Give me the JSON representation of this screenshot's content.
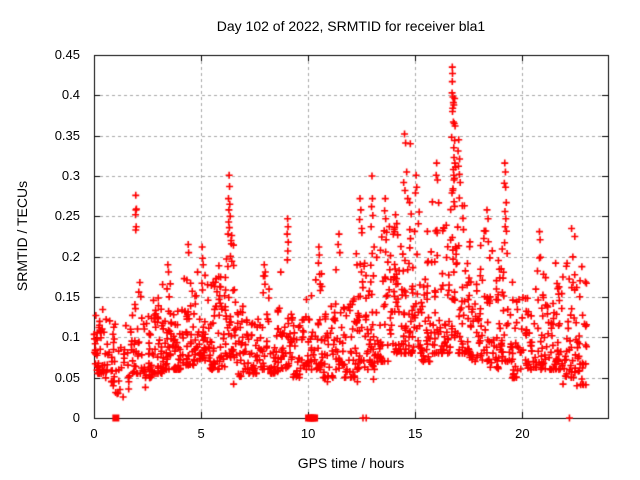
{
  "chart_data": {
    "type": "scatter",
    "title": "Day 102 of 2022, SRMTID for receiver bla1",
    "xlabel": "GPS time / hours",
    "ylabel": "SRMTID / TECUs",
    "xlim": [
      0,
      24
    ],
    "ylim": [
      0,
      0.45
    ],
    "x_ticks": [
      0,
      5,
      10,
      15,
      20
    ],
    "x_tick_labels": [
      "0",
      "5",
      "10",
      "15",
      "20"
    ],
    "y_ticks": [
      0,
      0.05,
      0.1,
      0.15,
      0.2,
      0.25,
      0.3,
      0.35,
      0.4,
      0.45
    ],
    "y_tick_labels": [
      "0",
      "0.05",
      "0.1",
      "0.15",
      "0.2",
      "0.25",
      "0.3",
      "0.35",
      "0.4",
      "0.45"
    ],
    "grid": true,
    "legend": "none",
    "marker": "plus",
    "marker_color": "#ff0000",
    "grid_color": "#a8a8a8",
    "axis_color": "#000000",
    "background_color": "#ffffff",
    "max_point": [
      16.73,
      0.435
    ],
    "peak_points": [
      [
        1.95,
        0.276
      ],
      [
        1.96,
        0.258
      ],
      [
        1.98,
        0.259
      ],
      [
        1.94,
        0.252
      ],
      [
        1.95,
        0.233
      ],
      [
        1.97,
        0.237
      ],
      [
        3.45,
        0.19
      ],
      [
        3.48,
        0.181
      ],
      [
        4.4,
        0.215
      ],
      [
        4.42,
        0.205
      ],
      [
        5.05,
        0.212
      ],
      [
        5.07,
        0.198
      ],
      [
        5.1,
        0.19
      ],
      [
        6.31,
        0.301
      ],
      [
        6.33,
        0.287
      ],
      [
        6.28,
        0.272
      ],
      [
        6.34,
        0.265
      ],
      [
        6.3,
        0.258
      ],
      [
        6.36,
        0.25
      ],
      [
        6.29,
        0.243
      ],
      [
        6.32,
        0.236
      ],
      [
        6.26,
        0.228
      ],
      [
        6.4,
        0.22
      ],
      [
        7.95,
        0.19
      ],
      [
        8.0,
        0.181
      ],
      [
        9.04,
        0.247
      ],
      [
        9.06,
        0.237
      ],
      [
        9.02,
        0.228
      ],
      [
        9.07,
        0.218
      ],
      [
        9.05,
        0.207
      ],
      [
        9.03,
        0.196
      ],
      [
        10.5,
        0.212
      ],
      [
        10.52,
        0.202
      ],
      [
        10.48,
        0.192
      ],
      [
        11.44,
        0.228
      ],
      [
        11.4,
        0.215
      ],
      [
        11.48,
        0.205
      ],
      [
        12.42,
        0.272
      ],
      [
        12.46,
        0.258
      ],
      [
        12.4,
        0.246
      ],
      [
        12.5,
        0.235
      ],
      [
        12.98,
        0.3
      ],
      [
        13.0,
        0.272
      ],
      [
        12.96,
        0.262
      ],
      [
        13.02,
        0.251
      ],
      [
        12.94,
        0.237
      ],
      [
        13.08,
        0.212
      ],
      [
        13.6,
        0.272
      ],
      [
        13.57,
        0.257
      ],
      [
        13.62,
        0.247
      ],
      [
        13.55,
        0.232
      ],
      [
        13.64,
        0.221
      ],
      [
        14.08,
        0.252
      ],
      [
        14.14,
        0.241
      ],
      [
        14.04,
        0.236
      ],
      [
        14.18,
        0.227
      ],
      [
        14.5,
        0.352
      ],
      [
        14.55,
        0.341
      ],
      [
        14.77,
        0.34
      ],
      [
        14.6,
        0.305
      ],
      [
        14.46,
        0.292
      ],
      [
        14.52,
        0.282
      ],
      [
        14.65,
        0.272
      ],
      [
        15.04,
        0.301
      ],
      [
        15.07,
        0.286
      ],
      [
        15.01,
        0.279
      ],
      [
        16.0,
        0.316
      ],
      [
        15.98,
        0.301
      ],
      [
        16.04,
        0.295
      ],
      [
        16.73,
        0.435
      ],
      [
        16.74,
        0.427
      ],
      [
        16.73,
        0.417
      ],
      [
        16.72,
        0.403
      ],
      [
        16.76,
        0.398
      ],
      [
        16.84,
        0.396
      ],
      [
        16.78,
        0.391
      ],
      [
        16.8,
        0.388
      ],
      [
        16.75,
        0.384
      ],
      [
        16.74,
        0.38
      ],
      [
        16.78,
        0.367
      ],
      [
        16.82,
        0.365
      ],
      [
        16.86,
        0.362
      ],
      [
        16.7,
        0.348
      ],
      [
        16.84,
        0.344
      ],
      [
        16.8,
        0.335
      ],
      [
        16.81,
        0.323
      ],
      [
        16.85,
        0.316
      ],
      [
        16.88,
        0.311
      ],
      [
        16.78,
        0.308
      ],
      [
        16.8,
        0.301
      ],
      [
        16.83,
        0.297
      ],
      [
        17.03,
        0.345
      ],
      [
        17.0,
        0.331
      ],
      [
        17.07,
        0.321
      ],
      [
        17.02,
        0.312
      ],
      [
        17.06,
        0.302
      ],
      [
        17.1,
        0.292
      ],
      [
        18.35,
        0.258
      ],
      [
        18.4,
        0.247
      ],
      [
        19.18,
        0.316
      ],
      [
        19.21,
        0.305
      ],
      [
        19.16,
        0.291
      ],
      [
        19.22,
        0.286
      ],
      [
        19.25,
        0.267
      ],
      [
        19.19,
        0.256
      ],
      [
        19.23,
        0.247
      ],
      [
        19.2,
        0.237
      ],
      [
        20.8,
        0.231
      ],
      [
        20.83,
        0.221
      ],
      [
        22.3,
        0.235
      ],
      [
        22.45,
        0.225
      ],
      [
        0.9,
        0.04
      ],
      [
        1.36,
        0.026
      ],
      [
        1.62,
        0.036
      ],
      [
        2.4,
        0.038
      ],
      [
        6.52,
        0.042
      ],
      [
        10.9,
        0.045
      ],
      [
        12.3,
        0.045
      ],
      [
        13.05,
        0.048
      ],
      [
        19.62,
        0.05
      ],
      [
        21.9,
        0.042
      ],
      [
        22.55,
        0.04
      ]
    ],
    "density_bands_format": "[t_start_hours, t_end_hours, point_count, value_min_TECUs, value_max_TECUs]",
    "density_bands": [
      [
        0.0,
        0.5,
        42,
        0.055,
        0.135
      ],
      [
        0.5,
        1.0,
        26,
        0.045,
        0.125
      ],
      [
        1.0,
        1.35,
        10,
        0.03,
        0.095
      ],
      [
        1.35,
        1.75,
        13,
        0.045,
        0.12
      ],
      [
        1.75,
        2.2,
        26,
        0.055,
        0.175
      ],
      [
        2.2,
        2.7,
        32,
        0.05,
        0.14
      ],
      [
        2.7,
        3.2,
        36,
        0.055,
        0.15
      ],
      [
        3.2,
        3.7,
        36,
        0.06,
        0.17
      ],
      [
        3.7,
        4.2,
        36,
        0.06,
        0.16
      ],
      [
        4.2,
        4.7,
        36,
        0.065,
        0.18
      ],
      [
        4.7,
        5.2,
        38,
        0.07,
        0.19
      ],
      [
        5.2,
        5.7,
        32,
        0.06,
        0.17
      ],
      [
        5.7,
        6.1,
        28,
        0.06,
        0.19
      ],
      [
        6.1,
        6.6,
        40,
        0.075,
        0.245
      ],
      [
        6.6,
        7.1,
        30,
        0.05,
        0.15
      ],
      [
        7.1,
        7.6,
        28,
        0.055,
        0.145
      ],
      [
        7.6,
        8.2,
        32,
        0.06,
        0.18
      ],
      [
        8.2,
        8.7,
        28,
        0.055,
        0.145
      ],
      [
        8.7,
        9.2,
        30,
        0.06,
        0.19
      ],
      [
        9.2,
        9.7,
        26,
        0.05,
        0.13
      ],
      [
        9.7,
        10.2,
        28,
        0.06,
        0.155
      ],
      [
        10.2,
        10.7,
        30,
        0.06,
        0.185
      ],
      [
        10.7,
        11.2,
        28,
        0.05,
        0.14
      ],
      [
        11.2,
        11.7,
        30,
        0.06,
        0.2
      ],
      [
        11.7,
        12.2,
        28,
        0.05,
        0.15
      ],
      [
        12.2,
        12.7,
        36,
        0.06,
        0.24
      ],
      [
        12.7,
        13.2,
        36,
        0.06,
        0.23
      ],
      [
        13.2,
        13.8,
        36,
        0.07,
        0.24
      ],
      [
        13.8,
        14.3,
        38,
        0.08,
        0.235
      ],
      [
        14.3,
        14.8,
        36,
        0.08,
        0.27
      ],
      [
        14.8,
        15.3,
        38,
        0.08,
        0.26
      ],
      [
        15.3,
        15.8,
        32,
        0.07,
        0.24
      ],
      [
        15.8,
        16.3,
        34,
        0.08,
        0.27
      ],
      [
        16.3,
        16.65,
        24,
        0.08,
        0.24
      ],
      [
        16.65,
        17.0,
        30,
        0.1,
        0.3
      ],
      [
        17.0,
        17.5,
        36,
        0.08,
        0.28
      ],
      [
        17.5,
        18.0,
        32,
        0.07,
        0.22
      ],
      [
        18.0,
        18.5,
        34,
        0.07,
        0.26
      ],
      [
        18.5,
        19.0,
        28,
        0.06,
        0.21
      ],
      [
        19.0,
        19.5,
        32,
        0.07,
        0.235
      ],
      [
        19.5,
        20.0,
        28,
        0.05,
        0.18
      ],
      [
        20.0,
        20.5,
        28,
        0.06,
        0.17
      ],
      [
        20.5,
        21.0,
        30,
        0.06,
        0.2
      ],
      [
        21.0,
        21.5,
        28,
        0.06,
        0.185
      ],
      [
        21.5,
        22.0,
        32,
        0.06,
        0.21
      ],
      [
        22.0,
        22.5,
        32,
        0.05,
        0.21
      ],
      [
        22.5,
        23.0,
        32,
        0.04,
        0.195
      ]
    ],
    "zero_square_points": [
      1.02,
      10.02,
      10.12,
      10.22,
      10.3
    ],
    "zero_plus_points": [
      12.56,
      12.71,
      22.2
    ],
    "seed": 20221021
  }
}
